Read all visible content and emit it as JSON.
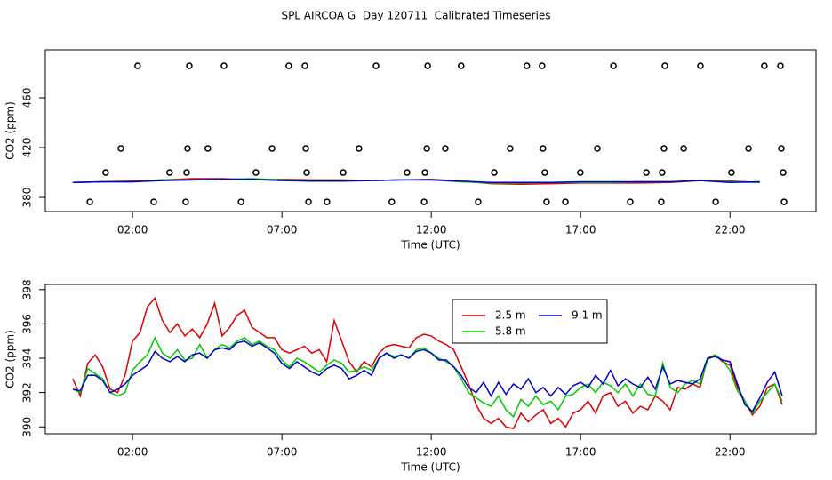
{
  "chart_data": [
    {
      "type": "line",
      "title": "SPL AIRCOA G  Day 120711  Calibrated Timeseries",
      "x_label": "Time (UTC)",
      "y_label": "CO2 (ppm)",
      "xlim": [
        -0.92,
        24.88
      ],
      "ylim": [
        368.6,
        498.6
      ],
      "xticks": [
        {
          "value": 2,
          "label": "02:00"
        },
        {
          "value": 7,
          "label": "07:00"
        },
        {
          "value": 12,
          "label": "12:00"
        },
        {
          "value": 17,
          "label": "17:00"
        },
        {
          "value": 22,
          "label": "22:00"
        }
      ],
      "yticks": [
        380,
        420,
        460
      ],
      "x": [
        0,
        1,
        2,
        3,
        4,
        5,
        6,
        7,
        8,
        9,
        10,
        11,
        12,
        13,
        14,
        15,
        16,
        17,
        18,
        19,
        20,
        21,
        22,
        23
      ],
      "series": [
        {
          "color": "#dd0000",
          "values": [
            392,
            392.5,
            393,
            394,
            395,
            395,
            394.5,
            394.5,
            394,
            394,
            393.5,
            394,
            394.5,
            393,
            391,
            390.5,
            391,
            391.5,
            391.5,
            391.5,
            392,
            393.5,
            393,
            392
          ]
        },
        {
          "color": "#00cc00",
          "values": [
            392,
            392.5,
            392.5,
            394,
            394,
            394.5,
            395,
            394,
            393.5,
            393.5,
            393.5,
            394,
            394,
            392.5,
            391.5,
            391.5,
            392,
            392,
            392,
            392.5,
            392.5,
            393.5,
            392.5,
            392
          ]
        },
        {
          "color": "#0000cc",
          "values": [
            392,
            392.5,
            392.5,
            393.5,
            394,
            394.5,
            394.5,
            393.5,
            393,
            393,
            393.5,
            394,
            394,
            393,
            392,
            392,
            392,
            392.5,
            392.5,
            392.5,
            392.5,
            393.5,
            392,
            392.5
          ]
        }
      ],
      "points": {
        "x": [
          2.17,
          3.9,
          5.06,
          7.23,
          7.77,
          10.15,
          11.88,
          13.0,
          15.2,
          15.71,
          18.1,
          19.82,
          21.01,
          23.15,
          23.69,
          1.61,
          3.84,
          4.52,
          6.67,
          7.8,
          9.58,
          11.85,
          12.47,
          14.64,
          15.74,
          17.56,
          19.79,
          20.45,
          22.62,
          23.72,
          1.1,
          3.24,
          3.81,
          6.13,
          7.83,
          9.05,
          11.19,
          11.79,
          14.11,
          15.8,
          16.99,
          19.2,
          19.73,
          22.05,
          23.78,
          0.57,
          2.71,
          3.78,
          5.63,
          7.89,
          8.51,
          10.68,
          11.76,
          13.57,
          15.86,
          16.49,
          18.66,
          19.7,
          21.52,
          23.81
        ],
        "y": [
          485.7,
          485.7,
          485.7,
          485.7,
          485.7,
          485.7,
          485.7,
          485.7,
          485.7,
          485.7,
          485.7,
          485.7,
          485.7,
          485.7,
          485.7,
          419.3,
          419.3,
          419.3,
          419.3,
          419.3,
          419.3,
          419.3,
          419.3,
          419.3,
          419.3,
          419.3,
          419.3,
          419.3,
          419.3,
          419.3,
          400,
          400,
          400,
          400,
          400,
          400,
          400,
          400,
          400,
          400,
          400,
          400,
          400,
          400,
          400,
          376.4,
          376.4,
          376.4,
          376.4,
          376.4,
          376.4,
          376.4,
          376.4,
          376.4,
          376.4,
          376.4,
          376.4,
          376.4,
          376.4,
          376.4
        ]
      }
    },
    {
      "type": "line",
      "x_label": "Time (UTC)",
      "y_label": "CO2 (ppm)",
      "xlim": [
        -0.92,
        24.88
      ],
      "ylim": [
        389.6,
        398.3
      ],
      "xticks": [
        {
          "value": 2,
          "label": "02:00"
        },
        {
          "value": 7,
          "label": "07:00"
        },
        {
          "value": 12,
          "label": "12:00"
        },
        {
          "value": 17,
          "label": "17:00"
        },
        {
          "value": 22,
          "label": "22:00"
        }
      ],
      "yticks": [
        390,
        392,
        394,
        396,
        398
      ],
      "x": [
        0,
        0.25,
        0.5,
        0.75,
        1,
        1.25,
        1.5,
        1.75,
        2,
        2.25,
        2.5,
        2.75,
        3,
        3.25,
        3.5,
        3.75,
        4,
        4.25,
        4.5,
        4.75,
        5,
        5.25,
        5.5,
        5.75,
        6,
        6.25,
        6.5,
        6.75,
        7,
        7.25,
        7.5,
        7.75,
        8,
        8.25,
        8.5,
        8.75,
        9,
        9.25,
        9.5,
        9.75,
        10,
        10.25,
        10.5,
        10.75,
        11,
        11.25,
        11.5,
        11.75,
        12,
        12.25,
        12.5,
        12.75,
        13,
        13.25,
        13.5,
        13.75,
        14,
        14.25,
        14.5,
        14.75,
        15,
        15.25,
        15.5,
        15.75,
        16,
        16.25,
        16.5,
        16.75,
        17,
        17.25,
        17.5,
        17.75,
        18,
        18.25,
        18.5,
        18.75,
        19,
        19.25,
        19.5,
        19.75,
        20,
        20.25,
        20.5,
        20.75,
        21,
        21.25,
        21.5,
        21.75,
        22,
        22.25,
        22.5,
        22.75,
        23,
        23.25,
        23.5,
        23.75
      ],
      "series": [
        {
          "name": "2.5 m",
          "color": "#dd0000",
          "values": [
            392.8,
            391.8,
            393.7,
            394.2,
            393.5,
            392.2,
            392.0,
            393.0,
            395.0,
            395.5,
            397.0,
            397.5,
            396.2,
            395.5,
            396.0,
            395.3,
            395.7,
            395.2,
            396.0,
            397.2,
            395.3,
            395.8,
            396.5,
            396.8,
            395.8,
            395.5,
            395.2,
            395.2,
            394.5,
            394.3,
            394.5,
            394.7,
            394.3,
            394.5,
            393.8,
            396.2,
            395.0,
            393.8,
            393.2,
            393.8,
            393.5,
            394.3,
            394.7,
            394.8,
            394.7,
            394.6,
            395.2,
            395.4,
            395.3,
            395.0,
            394.8,
            394.5,
            393.5,
            392.5,
            391.3,
            390.5,
            390.2,
            390.5,
            390.0,
            389.9,
            390.8,
            390.3,
            390.7,
            391.0,
            390.2,
            390.5,
            390.0,
            390.8,
            391.0,
            391.5,
            390.8,
            391.8,
            392.0,
            391.2,
            391.5,
            390.8,
            391.2,
            391.0,
            391.8,
            391.5,
            391.0,
            392.3,
            392.2,
            392.5,
            392.3,
            394.0,
            394.2,
            393.8,
            393.6,
            392.3,
            391.5,
            390.7,
            391.2,
            392.3,
            392.5,
            391.3
          ]
        },
        {
          "name": "5.8 m",
          "color": "#00cc00",
          "values": [
            392.2,
            392.0,
            393.4,
            393.1,
            392.8,
            392.0,
            391.8,
            392.0,
            393.3,
            393.8,
            394.2,
            395.2,
            394.3,
            394.0,
            394.5,
            393.9,
            394.0,
            394.8,
            394.0,
            394.5,
            394.8,
            394.6,
            395.0,
            395.2,
            394.8,
            395.0,
            394.7,
            394.5,
            393.9,
            393.5,
            394.0,
            393.8,
            393.5,
            393.2,
            393.6,
            393.9,
            393.7,
            393.2,
            393.3,
            393.5,
            393.3,
            394.0,
            394.3,
            394.1,
            394.2,
            394.0,
            394.5,
            394.6,
            394.3,
            394.0,
            393.8,
            393.5,
            392.8,
            392.0,
            391.7,
            391.4,
            391.2,
            391.8,
            391.0,
            390.6,
            391.6,
            391.2,
            391.8,
            391.3,
            391.5,
            391.0,
            391.8,
            391.9,
            392.3,
            392.5,
            392.0,
            392.6,
            392.4,
            392.0,
            392.5,
            391.8,
            392.5,
            391.9,
            391.8,
            393.7,
            392.3,
            392.0,
            392.5,
            392.7,
            392.5,
            393.9,
            394.2,
            393.9,
            393.3,
            392.1,
            391.5,
            390.8,
            391.5,
            392.0,
            392.5,
            391.5
          ]
        },
        {
          "name": "9.1 m",
          "color": "#0000cc",
          "values": [
            392.2,
            392.1,
            393.0,
            393.0,
            392.7,
            392.0,
            392.2,
            392.5,
            393.0,
            393.3,
            393.6,
            394.4,
            394.0,
            393.8,
            394.1,
            393.8,
            394.2,
            394.3,
            394.0,
            394.5,
            394.6,
            394.5,
            394.9,
            395.0,
            394.7,
            394.9,
            394.6,
            394.3,
            393.7,
            393.4,
            393.8,
            393.5,
            393.2,
            393.0,
            393.4,
            393.6,
            393.4,
            392.8,
            393.0,
            393.3,
            393.0,
            394.0,
            394.3,
            394.0,
            394.2,
            394.0,
            394.4,
            394.5,
            394.3,
            393.9,
            393.9,
            393.5,
            393.0,
            392.3,
            392.0,
            392.6,
            391.8,
            392.6,
            391.9,
            392.5,
            392.2,
            392.8,
            392.0,
            392.3,
            391.8,
            392.3,
            391.9,
            392.4,
            392.6,
            392.3,
            393.0,
            392.5,
            393.3,
            392.4,
            392.8,
            392.5,
            392.3,
            392.9,
            392.2,
            393.5,
            392.5,
            392.7,
            392.6,
            392.5,
            392.8,
            394.0,
            394.1,
            393.9,
            393.8,
            392.5,
            391.3,
            390.9,
            391.7,
            392.6,
            393.2,
            391.8
          ]
        }
      ]
    }
  ]
}
